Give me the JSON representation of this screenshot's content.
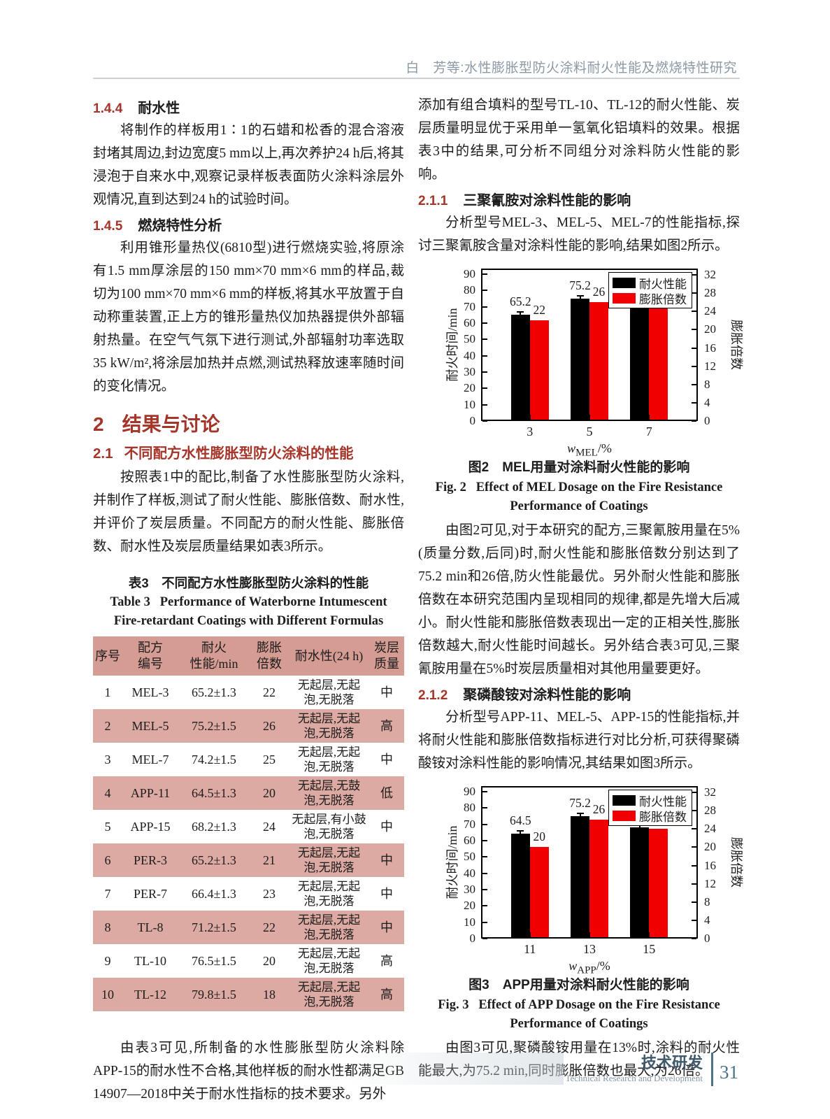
{
  "header": {
    "running_title": "白　芳等:水性膨胀型防火涂料耐火性能及燃烧特性研究"
  },
  "left": {
    "sec144": {
      "num": "1.4.4",
      "title": "耐水性"
    },
    "p144": "将制作的样板用1∶1的石蜡和松香的混合溶液封堵其周边,封边宽度5 mm以上,再次养护24 h后,将其浸泡于自来水中,观察记录样板表面防火涂料涂层外观情况,直到达到24 h的试验时间。",
    "sec145": {
      "num": "1.4.5",
      "title": "燃烧特性分析"
    },
    "p145": "利用锥形量热仪(6810型)进行燃烧实验,将原涂有1.5 mm厚涂层的150 mm×70 mm×6 mm的样品,裁切为100 mm×70 mm×6 mm的样板,将其水平放置于自动称重装置,正上方的锥形量热仪加热器提供外部辐射热量。在空气气氛下进行测试,外部辐射功率选取35 kW/m²,将涂层加热并点燃,测试热释放速率随时间的变化情况。",
    "sec2": {
      "num": "2",
      "title": "结果与讨论"
    },
    "sec21": {
      "num": "2.1",
      "title": "不同配方水性膨胀型防火涂料的性能"
    },
    "p21": "按照表1中的配比,制备了水性膨胀型防火涂料,并制作了样板,测试了耐火性能、膨胀倍数、耐水性,并评价了炭层质量。不同配方的耐火性能、膨胀倍数、耐水性及炭层质量结果如表3所示。",
    "table": {
      "caption_zh": "表3　不同配方水性膨胀型防火涂料的性能",
      "caption_en1": "Table 3   Performance of Waterborne Intumescent",
      "caption_en2": "Fire-retardant Coatings with Different Formulas",
      "headers": [
        [
          "序号"
        ],
        [
          "配方",
          "编号"
        ],
        [
          "耐火",
          "性能/min"
        ],
        [
          "膨胀",
          "倍数"
        ],
        [
          "耐水性(24 h)"
        ],
        [
          "炭层",
          "质量"
        ]
      ],
      "rows": [
        [
          "1",
          "MEL-3",
          "65.2±1.3",
          "22",
          [
            "无起层,无起",
            "泡,无脱落"
          ],
          "中"
        ],
        [
          "2",
          "MEL-5",
          "75.2±1.5",
          "26",
          [
            "无起层,无起",
            "泡,无脱落"
          ],
          "高"
        ],
        [
          "3",
          "MEL-7",
          "74.2±1.5",
          "25",
          [
            "无起层,无起",
            "泡,无脱落"
          ],
          "中"
        ],
        [
          "4",
          "APP-11",
          "64.5±1.3",
          "20",
          [
            "无起层,无鼓",
            "泡,无脱落"
          ],
          "低"
        ],
        [
          "5",
          "APP-15",
          "68.2±1.3",
          "24",
          [
            "无起层,有小鼓",
            "泡,无脱落"
          ],
          "中"
        ],
        [
          "6",
          "PER-3",
          "65.2±1.3",
          "21",
          [
            "无起层,无起",
            "泡,无脱落"
          ],
          "中"
        ],
        [
          "7",
          "PER-7",
          "66.4±1.3",
          "23",
          [
            "无起层,无起",
            "泡,无脱落"
          ],
          "中"
        ],
        [
          "8",
          "TL-8",
          "71.2±1.5",
          "22",
          [
            "无起层,无起",
            "泡,无脱落"
          ],
          "中"
        ],
        [
          "9",
          "TL-10",
          "76.5±1.5",
          "20",
          [
            "无起层,无起",
            "泡,无脱落"
          ],
          "高"
        ],
        [
          "10",
          "TL-12",
          "79.8±1.5",
          "18",
          [
            "无起层,无起",
            "泡,无脱落"
          ],
          "高"
        ]
      ]
    },
    "p_table": "由表3可见,所制备的水性膨胀型防火涂料除APP-15的耐水性不合格,其他样板的耐水性都满足GB 14907—2018中关于耐水性指标的技术要求。另外"
  },
  "right": {
    "p_top": "添加有组合填料的型号TL-10、TL-12的耐火性能、炭层质量明显优于采用单一氢氧化铝填料的效果。根据表3中的结果,可分析不同组分对涂料防火性能的影响。",
    "sec211": {
      "num": "2.1.1",
      "title": "三聚氰胺对涂料性能的影响"
    },
    "p211": "分析型号MEL-3、MEL-5、MEL-7的性能指标,探讨三聚氰胺含量对涂料性能的影响,结果如图2所示。",
    "fig2": {
      "caption_zh": "图2　MEL用量对涂料耐火性能的影响",
      "caption_en1": "Fig. 2   Effect of MEL Dosage on the Fire Resistance",
      "caption_en2": "Performance of Coatings"
    },
    "p_fig2": "由图2可见,对于本研究的配方,三聚氰胺用量在5%(质量分数,后同)时,耐火性能和膨胀倍数分别达到了75.2 min和26倍,防火性能最优。另外耐火性能和膨胀倍数在本研究范围内呈现相同的规律,都是先增大后减小。耐火性能和膨胀倍数表现出一定的正相关性,膨胀倍数越大,耐火性能时间越长。另外结合表3可见,三聚氰胺用量在5%时炭层质量相对其他用量要更好。",
    "sec212": {
      "num": "2.1.2",
      "title": "聚磷酸铵对涂料性能的影响"
    },
    "p212": "分析型号APP-11、MEL-5、APP-15的性能指标,并将耐火性能和膨胀倍数指标进行对比分析,可获得聚磷酸铵对涂料性能的影响情况,其结果如图3所示。",
    "fig3": {
      "caption_zh": "图3　APP用量对涂料耐火性能的影响",
      "caption_en1": "Fig. 3   Effect of APP Dosage on the Fire Resistance",
      "caption_en2": "Performance of Coatings"
    },
    "p_fig3": "由图3可见,聚磷酸铵用量在13%时,涂料的耐火性能最大,为75.2 min,同时膨胀倍数也最大,为26倍。"
  },
  "footer": {
    "section_zh": "技术研发",
    "section_en": "Technical Research and Development",
    "page": "31"
  },
  "colors": {
    "heading_red": "#a63529",
    "table_header_pink": "#d59c94",
    "table_alt_row_pink": "#dcaaa2",
    "bar_black": "#000000",
    "bar_red": "#f00000",
    "footer_blue": "#4c7287",
    "running_title_gray": "#8b99a5"
  },
  "chart_data": [
    {
      "type": "bar",
      "figure": "图2",
      "title": "MEL用量对涂料耐火性能的影响",
      "categories": [
        "3",
        "5",
        "7"
      ],
      "x_var": "w",
      "x_sub": "MEL",
      "x_unit": "/%",
      "xlabel": "wMEL/%",
      "left_axis": {
        "label": "耐火时间/min",
        "ticks": [
          0,
          10,
          20,
          30,
          40,
          50,
          60,
          70,
          80,
          90
        ],
        "max": 93.5
      },
      "right_axis": {
        "label": "膨胀倍数",
        "ticks": [
          0,
          4,
          8,
          12,
          16,
          20,
          24,
          28,
          32
        ],
        "max": 33.4
      },
      "series": [
        {
          "name": "耐火性能",
          "color": "#000000",
          "axis": "left",
          "values": [
            65.2,
            75.2,
            74.2
          ],
          "error_bar": 1.5
        },
        {
          "name": "膨胀倍数",
          "color": "#f00000",
          "axis": "right",
          "values": [
            22,
            26,
            25
          ]
        }
      ],
      "legend_position": "top-right",
      "grid": false
    },
    {
      "type": "bar",
      "figure": "图3",
      "title": "APP用量对涂料耐火性能的影响",
      "categories": [
        "11",
        "13",
        "15"
      ],
      "x_var": "w",
      "x_sub": "APP",
      "x_unit": "/%",
      "xlabel": "wAPP/%",
      "left_axis": {
        "label": "耐火时间/min",
        "ticks": [
          0,
          10,
          20,
          30,
          40,
          50,
          60,
          70,
          80,
          90
        ],
        "max": 93.5
      },
      "right_axis": {
        "label": "膨胀倍数",
        "ticks": [
          0,
          4,
          8,
          12,
          16,
          20,
          24,
          28,
          32
        ],
        "max": 33.4
      },
      "series": [
        {
          "name": "耐火性能",
          "color": "#000000",
          "axis": "left",
          "values": [
            64.5,
            75.2,
            68.2
          ],
          "error_bar": 1.5
        },
        {
          "name": "膨胀倍数",
          "color": "#f00000",
          "axis": "right",
          "values": [
            20,
            26,
            24
          ]
        }
      ],
      "legend_position": "top-right",
      "grid": false
    }
  ]
}
